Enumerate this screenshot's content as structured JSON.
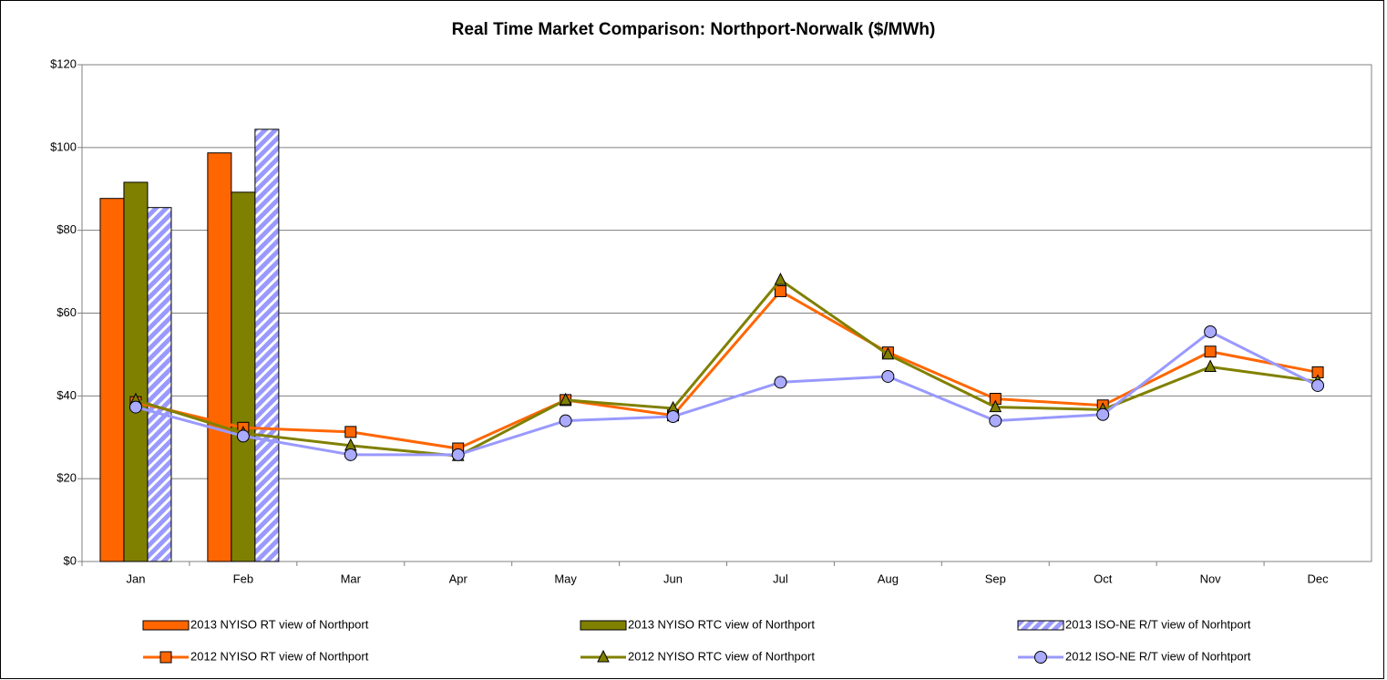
{
  "chart_data": {
    "type": "combo",
    "title": "Real Time Market Comparison: Northport-Norwalk ($/MWh)",
    "categories": [
      "Jan",
      "Feb",
      "Mar",
      "Apr",
      "May",
      "Jun",
      "Jul",
      "Aug",
      "Sep",
      "Oct",
      "Nov",
      "Dec"
    ],
    "ylim": [
      0,
      120
    ],
    "yticks": [
      {
        "value": 0,
        "label": "$0"
      },
      {
        "value": 20,
        "label": "$20"
      },
      {
        "value": 40,
        "label": "$40"
      },
      {
        "value": 60,
        "label": "$60"
      },
      {
        "value": 80,
        "label": "$80"
      },
      {
        "value": 100,
        "label": "$100"
      },
      {
        "value": 120,
        "label": "$120"
      }
    ],
    "grid": true,
    "legend": "bottom",
    "series": [
      {
        "name": "2013 NYISO RT view of Northport",
        "type": "bar",
        "color": "#ff6600",
        "values": [
          87.7,
          98.7,
          null,
          null,
          null,
          null,
          null,
          null,
          null,
          null,
          null,
          null
        ]
      },
      {
        "name": "2013 NYISO RTC view of Northport",
        "type": "bar",
        "color": "#808000",
        "values": [
          91.6,
          89.2,
          null,
          null,
          null,
          null,
          null,
          null,
          null,
          null,
          null,
          null
        ]
      },
      {
        "name": "2013 ISO-NE R/T view of Norhtport",
        "type": "bar",
        "color": "#9999ff",
        "hatch": true,
        "values": [
          85.5,
          104.4,
          null,
          null,
          null,
          null,
          null,
          null,
          null,
          null,
          null,
          null
        ]
      },
      {
        "name": "2012 NYISO RT view of Northport",
        "type": "line",
        "color": "#ff6600",
        "marker": "square",
        "values": [
          38.5,
          32.3,
          31.3,
          27.3,
          39.0,
          35.3,
          65.3,
          50.5,
          39.3,
          37.7,
          50.7,
          45.7
        ]
      },
      {
        "name": "2012 NYISO RTC view of Northport",
        "type": "line",
        "color": "#808000",
        "marker": "triangle",
        "values": [
          39.0,
          31.0,
          28.0,
          25.5,
          39.0,
          37.0,
          68.0,
          50.0,
          37.3,
          36.7,
          47.0,
          43.5
        ]
      },
      {
        "name": "2012 ISO-NE R/T view of Norhtport",
        "type": "line",
        "color": "#9999ff",
        "marker": "circle",
        "values": [
          37.3,
          30.3,
          25.8,
          25.8,
          34.0,
          35.0,
          43.3,
          44.7,
          34.0,
          35.5,
          55.5,
          42.5
        ]
      }
    ]
  }
}
